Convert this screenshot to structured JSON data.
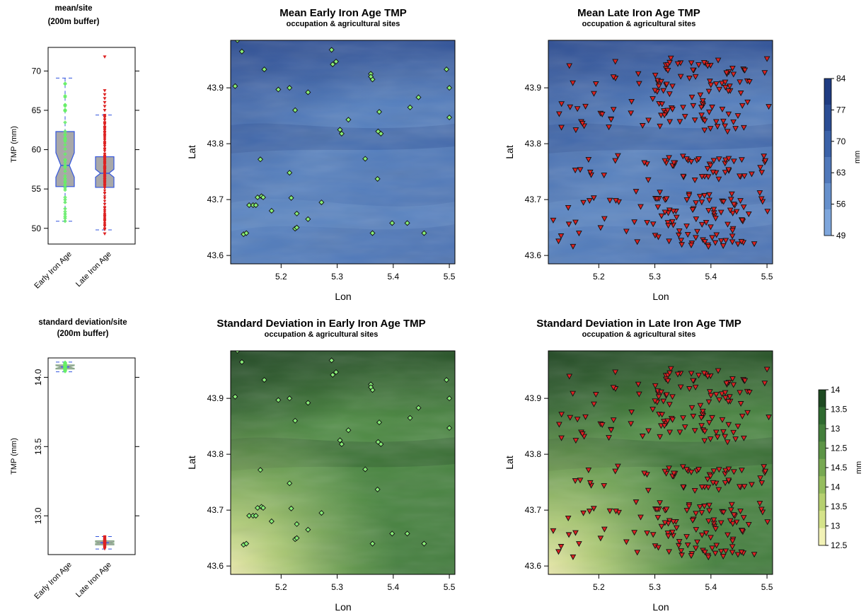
{
  "box_panels": [
    {
      "title": "mean/site",
      "subtitle": "(200m buffer)",
      "ylabel": "TMP (mm)",
      "ylim": [
        48,
        73
      ],
      "yticks": [
        "50",
        "55",
        "60",
        "65",
        "70"
      ],
      "categories": [
        "Early Iron Age",
        "Late Iron Age"
      ],
      "boxes": [
        {
          "name": "Early Iron Age",
          "q1": 55.3,
          "median": 58.0,
          "q3": 62.3,
          "notch_low": 56.5,
          "notch_high": 59.6,
          "whisker_low": 50.9,
          "whisker_high": 69.1,
          "color": "#66ee66"
        },
        {
          "name": "Late Iron Age",
          "q1": 55.2,
          "median": 57.0,
          "q3": 59.1,
          "notch_low": 56.5,
          "notch_high": 57.5,
          "whisker_low": 49.8,
          "whisker_high": 64.4,
          "color": "#dd2222"
        }
      ]
    },
    {
      "title": "standard deviation/site",
      "subtitle": "(200m buffer)",
      "ylabel": "TMP (mm)",
      "ylim": [
        12.72,
        14.14
      ],
      "yticks": [
        "13.0",
        "13.5",
        "14.0"
      ],
      "categories": [
        "Early Iron Age",
        "Late Iron Age"
      ],
      "boxes": [
        {
          "name": "Early Iron Age",
          "q1": 14.06,
          "median": 14.075,
          "q3": 14.09,
          "notch_low": 14.065,
          "notch_high": 14.085,
          "whisker_low": 14.04,
          "whisker_high": 14.11,
          "color": "#66ee66"
        },
        {
          "name": "Late Iron Age",
          "q1": 12.79,
          "median": 12.805,
          "q3": 12.82,
          "notch_low": 12.8,
          "notch_high": 12.81,
          "whisker_low": 12.76,
          "whisker_high": 12.85,
          "color": "#dd2222"
        }
      ]
    }
  ],
  "map_panels": [
    {
      "title": "Mean Early Iron Age TMP",
      "subtitle": "occupation & agricultural sites",
      "xlabel": "Lon",
      "ylabel": "Lat",
      "palette": "blue",
      "sites": "early",
      "marker": "diamond",
      "marker_color": "#88ee77"
    },
    {
      "title": "Mean Late Iron Age TMP",
      "subtitle": "occupation & agricultural sites",
      "xlabel": "Lon",
      "ylabel": "Lat",
      "palette": "blue",
      "sites": "late",
      "marker": "triangle",
      "marker_color": "#dd2222"
    },
    {
      "title": "Standard Deviation in Early Iron Age TMP",
      "subtitle": "occupation & agricultural sites",
      "xlabel": "Lon",
      "ylabel": "Lat",
      "palette": "green",
      "sites": "early",
      "marker": "diamond",
      "marker_color": "#88ee77"
    },
    {
      "title": "Standard Deviation in Late Iron Age TMP",
      "subtitle": "occupation & agricultural sites",
      "xlabel": "Lon",
      "ylabel": "Lat",
      "palette": "green",
      "sites": "late",
      "marker": "triangle",
      "marker_color": "#dd2222"
    }
  ],
  "map_axes": {
    "xlim": [
      5.11,
      5.51
    ],
    "ylim": [
      43.585,
      43.985
    ],
    "xticks": [
      "5.2",
      "5.3",
      "5.4",
      "5.5"
    ],
    "yticks": [
      "43.6",
      "43.7",
      "43.8",
      "43.9"
    ]
  },
  "legends": [
    {
      "unit": "mm",
      "labels": [
        "84",
        "77",
        "70",
        "63",
        "56",
        "49"
      ],
      "colors": [
        "#1f3c82",
        "#2b4d94",
        "#3b62a8",
        "#5078ba",
        "#6690cc",
        "#7ea6dc"
      ]
    },
    {
      "unit": "mm",
      "labels": [
        "14",
        "13.5",
        "13",
        "12.5",
        "14.5",
        "14",
        "13.5",
        "13",
        "12.5"
      ],
      "colors": [
        "#1e4a22",
        "#2f6a30",
        "#447f3c",
        "#5c9446",
        "#77a852",
        "#95bd5e",
        "#b6d070",
        "#d5e38a",
        "#f2f2b6"
      ]
    }
  ],
  "chart_data": [
    {
      "type": "box",
      "title": "mean/site",
      "subtitle": "(200m buffer)",
      "ylabel": "TMP (mm)",
      "categories": [
        "Early Iron Age",
        "Late Iron Age"
      ],
      "ylim": [
        48,
        73
      ],
      "series": [
        {
          "name": "Early Iron Age",
          "q1": 55.3,
          "median": 58.0,
          "q3": 62.3,
          "whisker_low": 50.9,
          "whisker_high": 69.1,
          "max_point": 69.1
        },
        {
          "name": "Late Iron Age",
          "q1": 55.2,
          "median": 57.0,
          "q3": 59.1,
          "whisker_low": 49.8,
          "whisker_high": 64.4,
          "max_point": 71.8
        }
      ]
    },
    {
      "type": "box",
      "title": "standard deviation/site",
      "subtitle": "(200m buffer)",
      "ylabel": "TMP (mm)",
      "categories": [
        "Early Iron Age",
        "Late Iron Age"
      ],
      "ylim": [
        12.72,
        14.14
      ],
      "series": [
        {
          "name": "Early Iron Age",
          "q1": 14.06,
          "median": 14.075,
          "q3": 14.09
        },
        {
          "name": "Late Iron Age",
          "q1": 12.79,
          "median": 12.805,
          "q3": 12.82
        }
      ]
    },
    {
      "type": "scatter",
      "title": "Mean Early Iron Age TMP",
      "subtitle": "occupation & agricultural sites",
      "xlabel": "Lon",
      "ylabel": "Lat",
      "xlim": [
        5.11,
        5.51
      ],
      "ylim": [
        43.585,
        43.985
      ],
      "background": "raster (blue palette, 49–84 mm)",
      "points": [
        [
          5.122,
          43.985
        ],
        [
          5.13,
          43.965
        ],
        [
          5.118,
          43.903
        ],
        [
          5.17,
          43.933
        ],
        [
          5.195,
          43.897
        ],
        [
          5.215,
          43.9
        ],
        [
          5.225,
          43.86
        ],
        [
          5.248,
          43.892
        ],
        [
          5.29,
          43.968
        ],
        [
          5.292,
          43.942
        ],
        [
          5.298,
          43.947
        ],
        [
          5.32,
          43.843
        ],
        [
          5.305,
          43.825
        ],
        [
          5.308,
          43.818
        ],
        [
          5.36,
          43.925
        ],
        [
          5.363,
          43.915
        ],
        [
          5.36,
          43.92
        ],
        [
          5.375,
          43.857
        ],
        [
          5.373,
          43.822
        ],
        [
          5.378,
          43.818
        ],
        [
          5.43,
          43.865
        ],
        [
          5.445,
          43.883
        ],
        [
          5.495,
          43.933
        ],
        [
          5.5,
          43.9
        ],
        [
          5.5,
          43.847
        ],
        [
          5.35,
          43.773
        ],
        [
          5.163,
          43.772
        ],
        [
          5.215,
          43.748
        ],
        [
          5.372,
          43.737
        ],
        [
          5.158,
          43.704
        ],
        [
          5.165,
          43.706
        ],
        [
          5.168,
          43.704
        ],
        [
          5.143,
          43.69
        ],
        [
          5.15,
          43.69
        ],
        [
          5.155,
          43.69
        ],
        [
          5.218,
          43.703
        ],
        [
          5.272,
          43.695
        ],
        [
          5.183,
          43.68
        ],
        [
          5.228,
          43.675
        ],
        [
          5.248,
          43.665
        ],
        [
          5.225,
          43.648
        ],
        [
          5.228,
          43.65
        ],
        [
          5.133,
          43.638
        ],
        [
          5.138,
          43.64
        ],
        [
          5.363,
          43.64
        ],
        [
          5.398,
          43.658
        ],
        [
          5.425,
          43.658
        ],
        [
          5.455,
          43.64
        ]
      ]
    },
    {
      "type": "scatter",
      "title": "Mean Late Iron Age TMP",
      "subtitle": "occupation & agricultural sites",
      "xlabel": "Lon",
      "ylabel": "Lat",
      "xlim": [
        5.11,
        5.51
      ],
      "ylim": [
        43.585,
        43.985
      ],
      "background": "raster (blue palette, 49–84 mm)",
      "points": "~300 Late Iron Age sites, densest in bands at Lat 43.62–43.72, 43.73–43.78 and 43.82–43.95"
    },
    {
      "type": "scatter",
      "title": "Standard Deviation in Early Iron Age TMP",
      "subtitle": "occupation & agricultural sites",
      "xlabel": "Lon",
      "ylabel": "Lat",
      "xlim": [
        5.11,
        5.51
      ],
      "ylim": [
        43.585,
        43.985
      ],
      "background": "raster (green palette, 12.5–14 mm)",
      "points": "same Early Iron Age sites as the mean panel"
    },
    {
      "type": "scatter",
      "title": "Standard Deviation in Late Iron Age TMP",
      "subtitle": "occupation & agricultural sites",
      "xlabel": "Lon",
      "ylabel": "Lat",
      "xlim": [
        5.11,
        5.51
      ],
      "ylim": [
        43.585,
        43.985
      ],
      "background": "raster (green palette, 12.5–14 mm)",
      "points": "same Late Iron Age sites as the mean panel"
    }
  ]
}
